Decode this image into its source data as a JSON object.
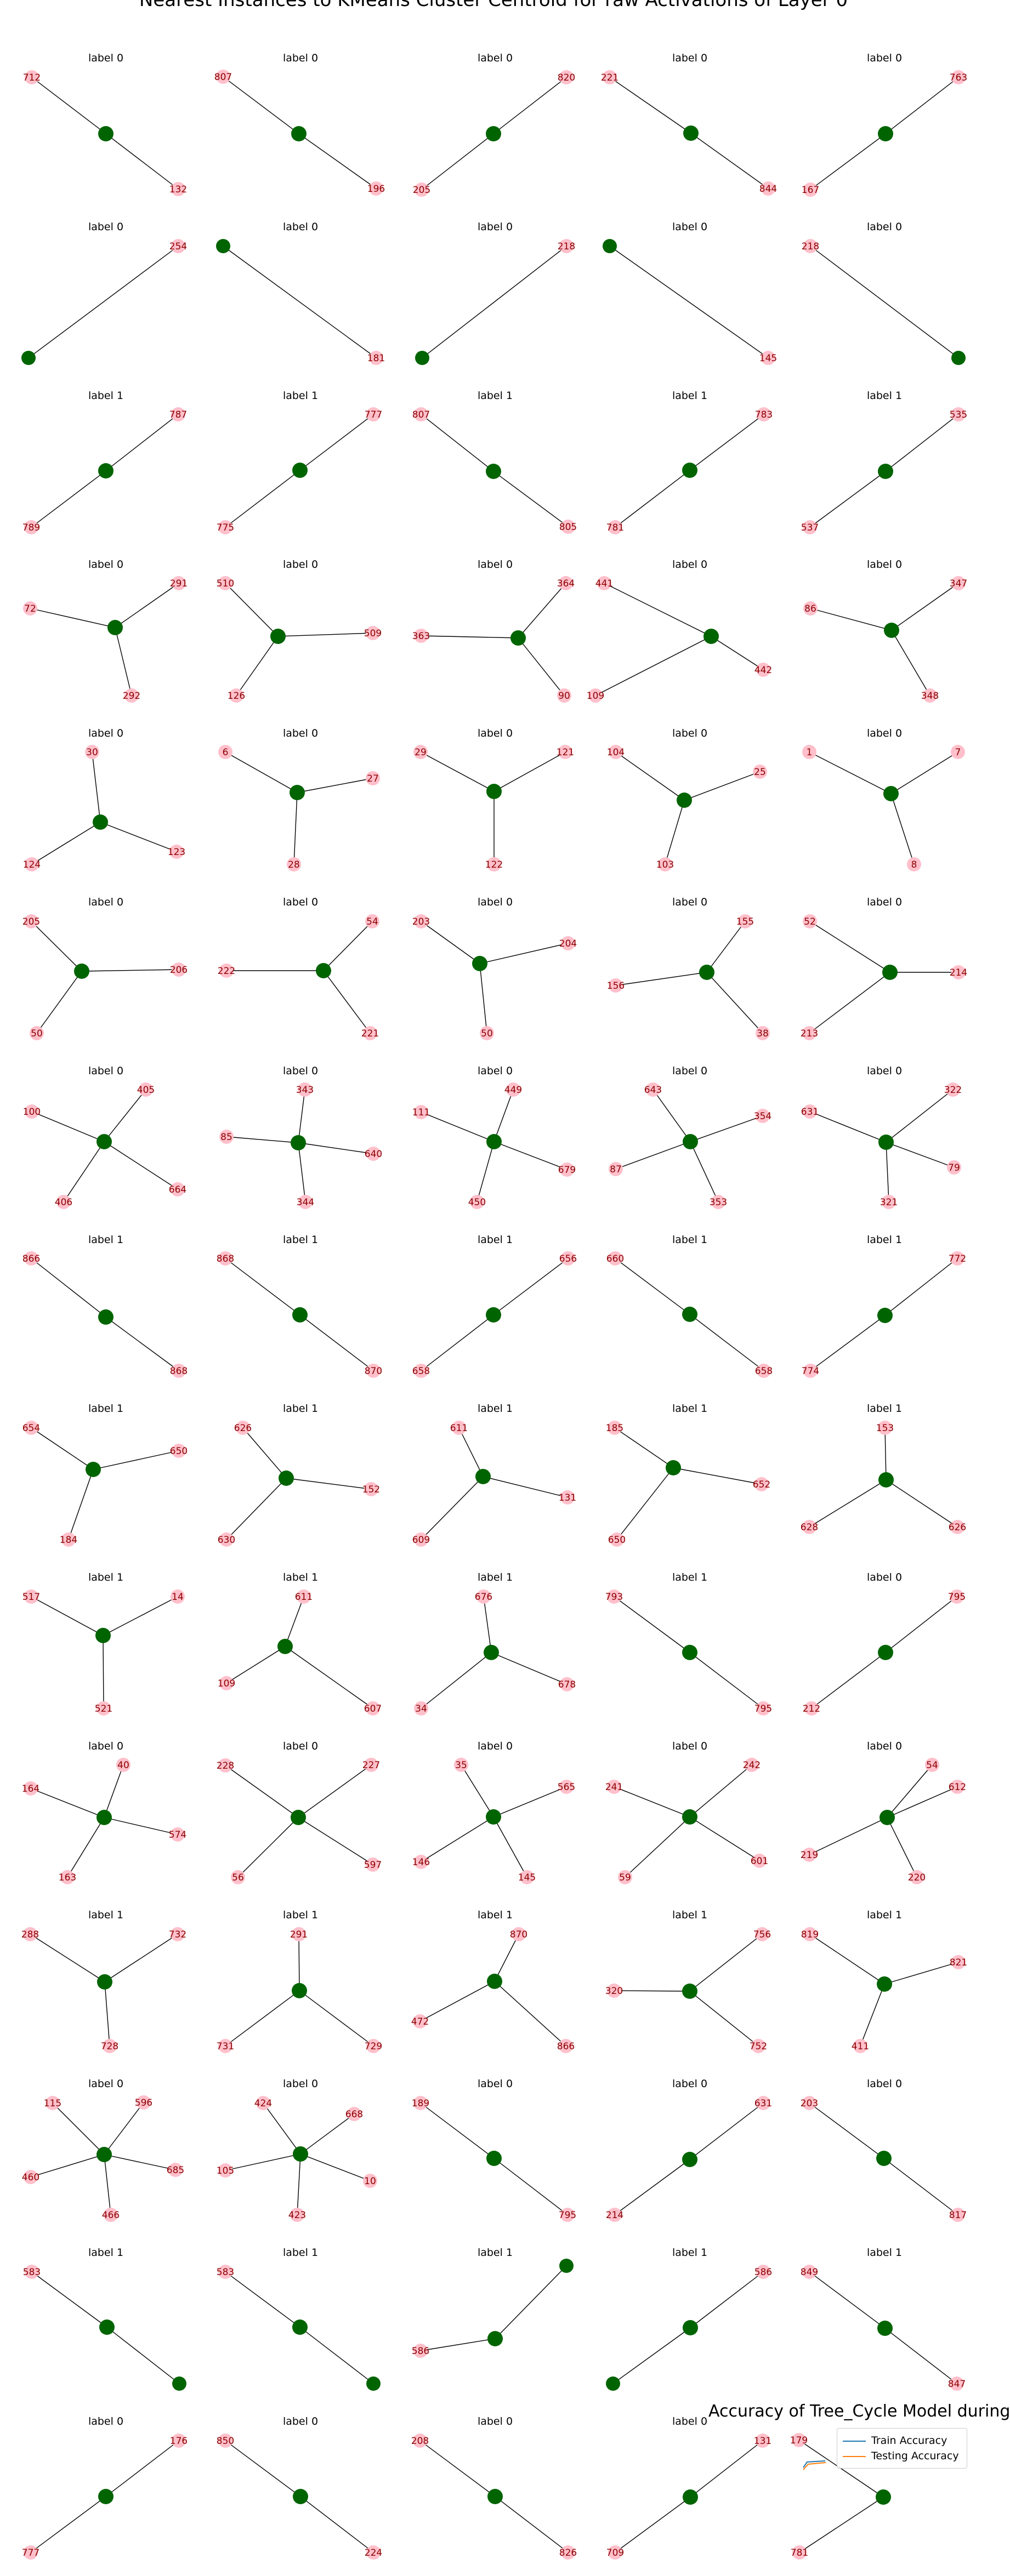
{
  "title": "Nearest Instances to KMeans Cluster Centroid for raw Activations of Layer 0",
  "colors": {
    "center": "#006400",
    "leaf": "#ffc0cb",
    "leaf_text": "#8b0000",
    "edge": "#000000",
    "train": "#1f77b4",
    "test": "#ff7f0e"
  },
  "overlay": {
    "title": "Accuracy of Tree_Cycle Model during",
    "legend": [
      {
        "label": "Train Accuracy",
        "color": "#1f77b4"
      },
      {
        "label": "Testing Accuracy",
        "color": "#ff7f0e"
      }
    ]
  },
  "rows": [
    [
      {
        "label": "label 0",
        "leaves": [
          "712",
          "132"
        ]
      },
      {
        "label": "label 0",
        "leaves": [
          "807",
          "196"
        ]
      },
      {
        "label": "label 0",
        "leaves": [
          "205",
          "820"
        ]
      },
      {
        "label": "label 0",
        "leaves": [
          "221",
          "844"
        ]
      },
      {
        "label": "label 0",
        "leaves": [
          "167",
          "763"
        ]
      }
    ],
    [
      {
        "label": "label 0",
        "leaves": [
          "",
          "254"
        ]
      },
      {
        "label": "label 0",
        "leaves": [
          "",
          "181"
        ]
      },
      {
        "label": "label 0",
        "leaves": [
          "",
          "218"
        ]
      },
      {
        "label": "label 0",
        "leaves": [
          "",
          "145"
        ]
      },
      {
        "label": "label 0",
        "leaves": [
          "218",
          ""
        ]
      }
    ],
    [
      {
        "label": "label 1",
        "leaves": [
          "789",
          "787"
        ]
      },
      {
        "label": "label 1",
        "leaves": [
          "775",
          "777"
        ]
      },
      {
        "label": "label 1",
        "leaves": [
          "807",
          "805"
        ]
      },
      {
        "label": "label 1",
        "leaves": [
          "781",
          "783"
        ]
      },
      {
        "label": "label 1",
        "leaves": [
          "537",
          "535"
        ]
      }
    ],
    [
      {
        "label": "label 0",
        "leaves": [
          "72",
          "291",
          "292"
        ]
      },
      {
        "label": "label 0",
        "leaves": [
          "510",
          "509",
          "126"
        ]
      },
      {
        "label": "label 0",
        "leaves": [
          "363",
          "364",
          "90"
        ]
      },
      {
        "label": "label 0",
        "leaves": [
          "441",
          "442",
          "109"
        ]
      },
      {
        "label": "label 0",
        "leaves": [
          "86",
          "347",
          "348"
        ]
      }
    ],
    [
      {
        "label": "label 0",
        "leaves": [
          "30",
          "124",
          "123"
        ]
      },
      {
        "label": "label 0",
        "leaves": [
          "6",
          "27",
          "28"
        ]
      },
      {
        "label": "label 0",
        "leaves": [
          "29",
          "121",
          "122"
        ]
      },
      {
        "label": "label 0",
        "leaves": [
          "104",
          "25",
          "103"
        ]
      },
      {
        "label": "label 0",
        "leaves": [
          "1",
          "7",
          "8"
        ]
      }
    ],
    [
      {
        "label": "label 0",
        "leaves": [
          "205",
          "206",
          "50"
        ]
      },
      {
        "label": "label 0",
        "leaves": [
          "54",
          "222",
          "221"
        ]
      },
      {
        "label": "label 0",
        "leaves": [
          "203",
          "204",
          "50"
        ]
      },
      {
        "label": "label 0",
        "leaves": [
          "155",
          "156",
          "38"
        ]
      },
      {
        "label": "label 0",
        "leaves": [
          "52",
          "214",
          "213"
        ]
      }
    ],
    [
      {
        "label": "label 0",
        "leaves": [
          "405",
          "100",
          "664",
          "406"
        ]
      },
      {
        "label": "label 0",
        "leaves": [
          "343",
          "85",
          "640",
          "344"
        ]
      },
      {
        "label": "label 0",
        "leaves": [
          "449",
          "111",
          "679",
          "450"
        ]
      },
      {
        "label": "label 0",
        "leaves": [
          "643",
          "354",
          "87",
          "353"
        ]
      },
      {
        "label": "label 0",
        "leaves": [
          "322",
          "631",
          "79",
          "321"
        ]
      }
    ],
    [
      {
        "label": "label 1",
        "leaves": [
          "866",
          "868"
        ]
      },
      {
        "label": "label 1",
        "leaves": [
          "868",
          "870"
        ]
      },
      {
        "label": "label 1",
        "leaves": [
          "658",
          "656"
        ]
      },
      {
        "label": "label 1",
        "leaves": [
          "660",
          "658"
        ]
      },
      {
        "label": "label 1",
        "leaves": [
          "774",
          "772"
        ]
      }
    ],
    [
      {
        "label": "label 1",
        "leaves": [
          "654",
          "650",
          "184"
        ]
      },
      {
        "label": "label 1",
        "leaves": [
          "626",
          "152",
          "630"
        ]
      },
      {
        "label": "label 1",
        "leaves": [
          "611",
          "131",
          "609"
        ]
      },
      {
        "label": "label 1",
        "leaves": [
          "185",
          "652",
          "650"
        ]
      },
      {
        "label": "label 1",
        "leaves": [
          "153",
          "628",
          "626"
        ]
      }
    ],
    [
      {
        "label": "label 1",
        "leaves": [
          "517",
          "14",
          "521"
        ]
      },
      {
        "label": "label 1",
        "leaves": [
          "611",
          "109",
          "607"
        ]
      },
      {
        "label": "label 1",
        "leaves": [
          "676",
          "34",
          "678"
        ]
      },
      {
        "label": "label 1",
        "leaves": [
          "793",
          "795"
        ]
      },
      {
        "label": "label 0",
        "leaves": [
          "212",
          "795"
        ]
      }
    ],
    [
      {
        "label": "label 0",
        "leaves": [
          "40",
          "164",
          "574",
          "163"
        ]
      },
      {
        "label": "label 0",
        "leaves": [
          "228",
          "227",
          "56",
          "597"
        ]
      },
      {
        "label": "label 0",
        "leaves": [
          "35",
          "565",
          "146",
          "145"
        ]
      },
      {
        "label": "label 0",
        "leaves": [
          "241",
          "242",
          "59",
          "601"
        ]
      },
      {
        "label": "label 0",
        "leaves": [
          "54",
          "612",
          "219",
          "220"
        ]
      }
    ],
    [
      {
        "label": "label 1",
        "leaves": [
          "288",
          "732",
          "728"
        ]
      },
      {
        "label": "label 1",
        "leaves": [
          "291",
          "731",
          "729"
        ]
      },
      {
        "label": "label 1",
        "leaves": [
          "870",
          "472",
          "866"
        ]
      },
      {
        "label": "label 1",
        "leaves": [
          "320",
          "756",
          "752"
        ]
      },
      {
        "label": "label 1",
        "leaves": [
          "819",
          "821",
          "411"
        ]
      }
    ],
    [
      {
        "label": "label 0",
        "leaves": [
          "115",
          "596",
          "460",
          "685",
          "466"
        ]
      },
      {
        "label": "label 0",
        "leaves": [
          "424",
          "668",
          "105",
          "10",
          "423"
        ]
      },
      {
        "label": "label 0",
        "leaves": [
          "189",
          "795"
        ]
      },
      {
        "label": "label 0",
        "leaves": [
          "214",
          "631"
        ]
      },
      {
        "label": "label 0",
        "leaves": [
          "203",
          "817"
        ]
      }
    ],
    [
      {
        "label": "label 1",
        "leaves": [
          "583",
          ""
        ]
      },
      {
        "label": "label 1",
        "leaves": [
          "583",
          ""
        ]
      },
      {
        "label": "label 1",
        "leaves": [
          "586",
          ""
        ]
      },
      {
        "label": "label 1",
        "leaves": [
          "",
          "586"
        ]
      },
      {
        "label": "label 1",
        "leaves": [
          "849",
          "847"
        ]
      }
    ],
    [
      {
        "label": "label 0",
        "leaves": [
          "777",
          "176"
        ]
      },
      {
        "label": "label 0",
        "leaves": [
          "850",
          "224"
        ]
      },
      {
        "label": "label 0",
        "leaves": [
          "208",
          "826"
        ]
      },
      {
        "label": "label 0",
        "leaves": [
          "709",
          "131"
        ]
      },
      {
        "label": "",
        "leaves": [
          "179",
          "781"
        ]
      }
    ]
  ]
}
